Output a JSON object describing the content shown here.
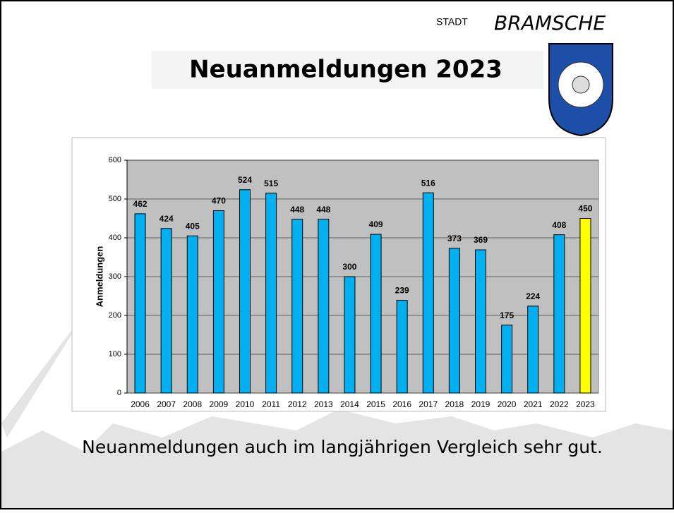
{
  "logo": {
    "prefix": "STADT",
    "name": "BRAMSCHE"
  },
  "chart_data": {
    "type": "bar",
    "title": "Neuanmeldungen 2023",
    "y_label": "Anmeldungen",
    "categories": [
      "2006",
      "2007",
      "2008",
      "2009",
      "2010",
      "2011",
      "2012",
      "2013",
      "2014",
      "2015",
      "2016",
      "2017",
      "2018",
      "2019",
      "2020",
      "2021",
      "2022",
      "2023"
    ],
    "values": [
      462,
      424,
      405,
      470,
      524,
      515,
      448,
      448,
      300,
      409,
      239,
      516,
      373,
      369,
      175,
      224,
      408,
      450
    ],
    "colors": [
      "#00b0f0",
      "#00b0f0",
      "#00b0f0",
      "#00b0f0",
      "#00b0f0",
      "#00b0f0",
      "#00b0f0",
      "#00b0f0",
      "#00b0f0",
      "#00b0f0",
      "#00b0f0",
      "#00b0f0",
      "#00b0f0",
      "#00b0f0",
      "#00b0f0",
      "#00b0f0",
      "#00b0f0",
      "#ffff00"
    ],
    "ylim": [
      0,
      600
    ],
    "yticks": [
      0,
      100,
      200,
      300,
      400,
      500,
      600
    ],
    "grid": true,
    "caption": "Neuanmeldungen auch im langjährigen Vergleich sehr gut."
  }
}
